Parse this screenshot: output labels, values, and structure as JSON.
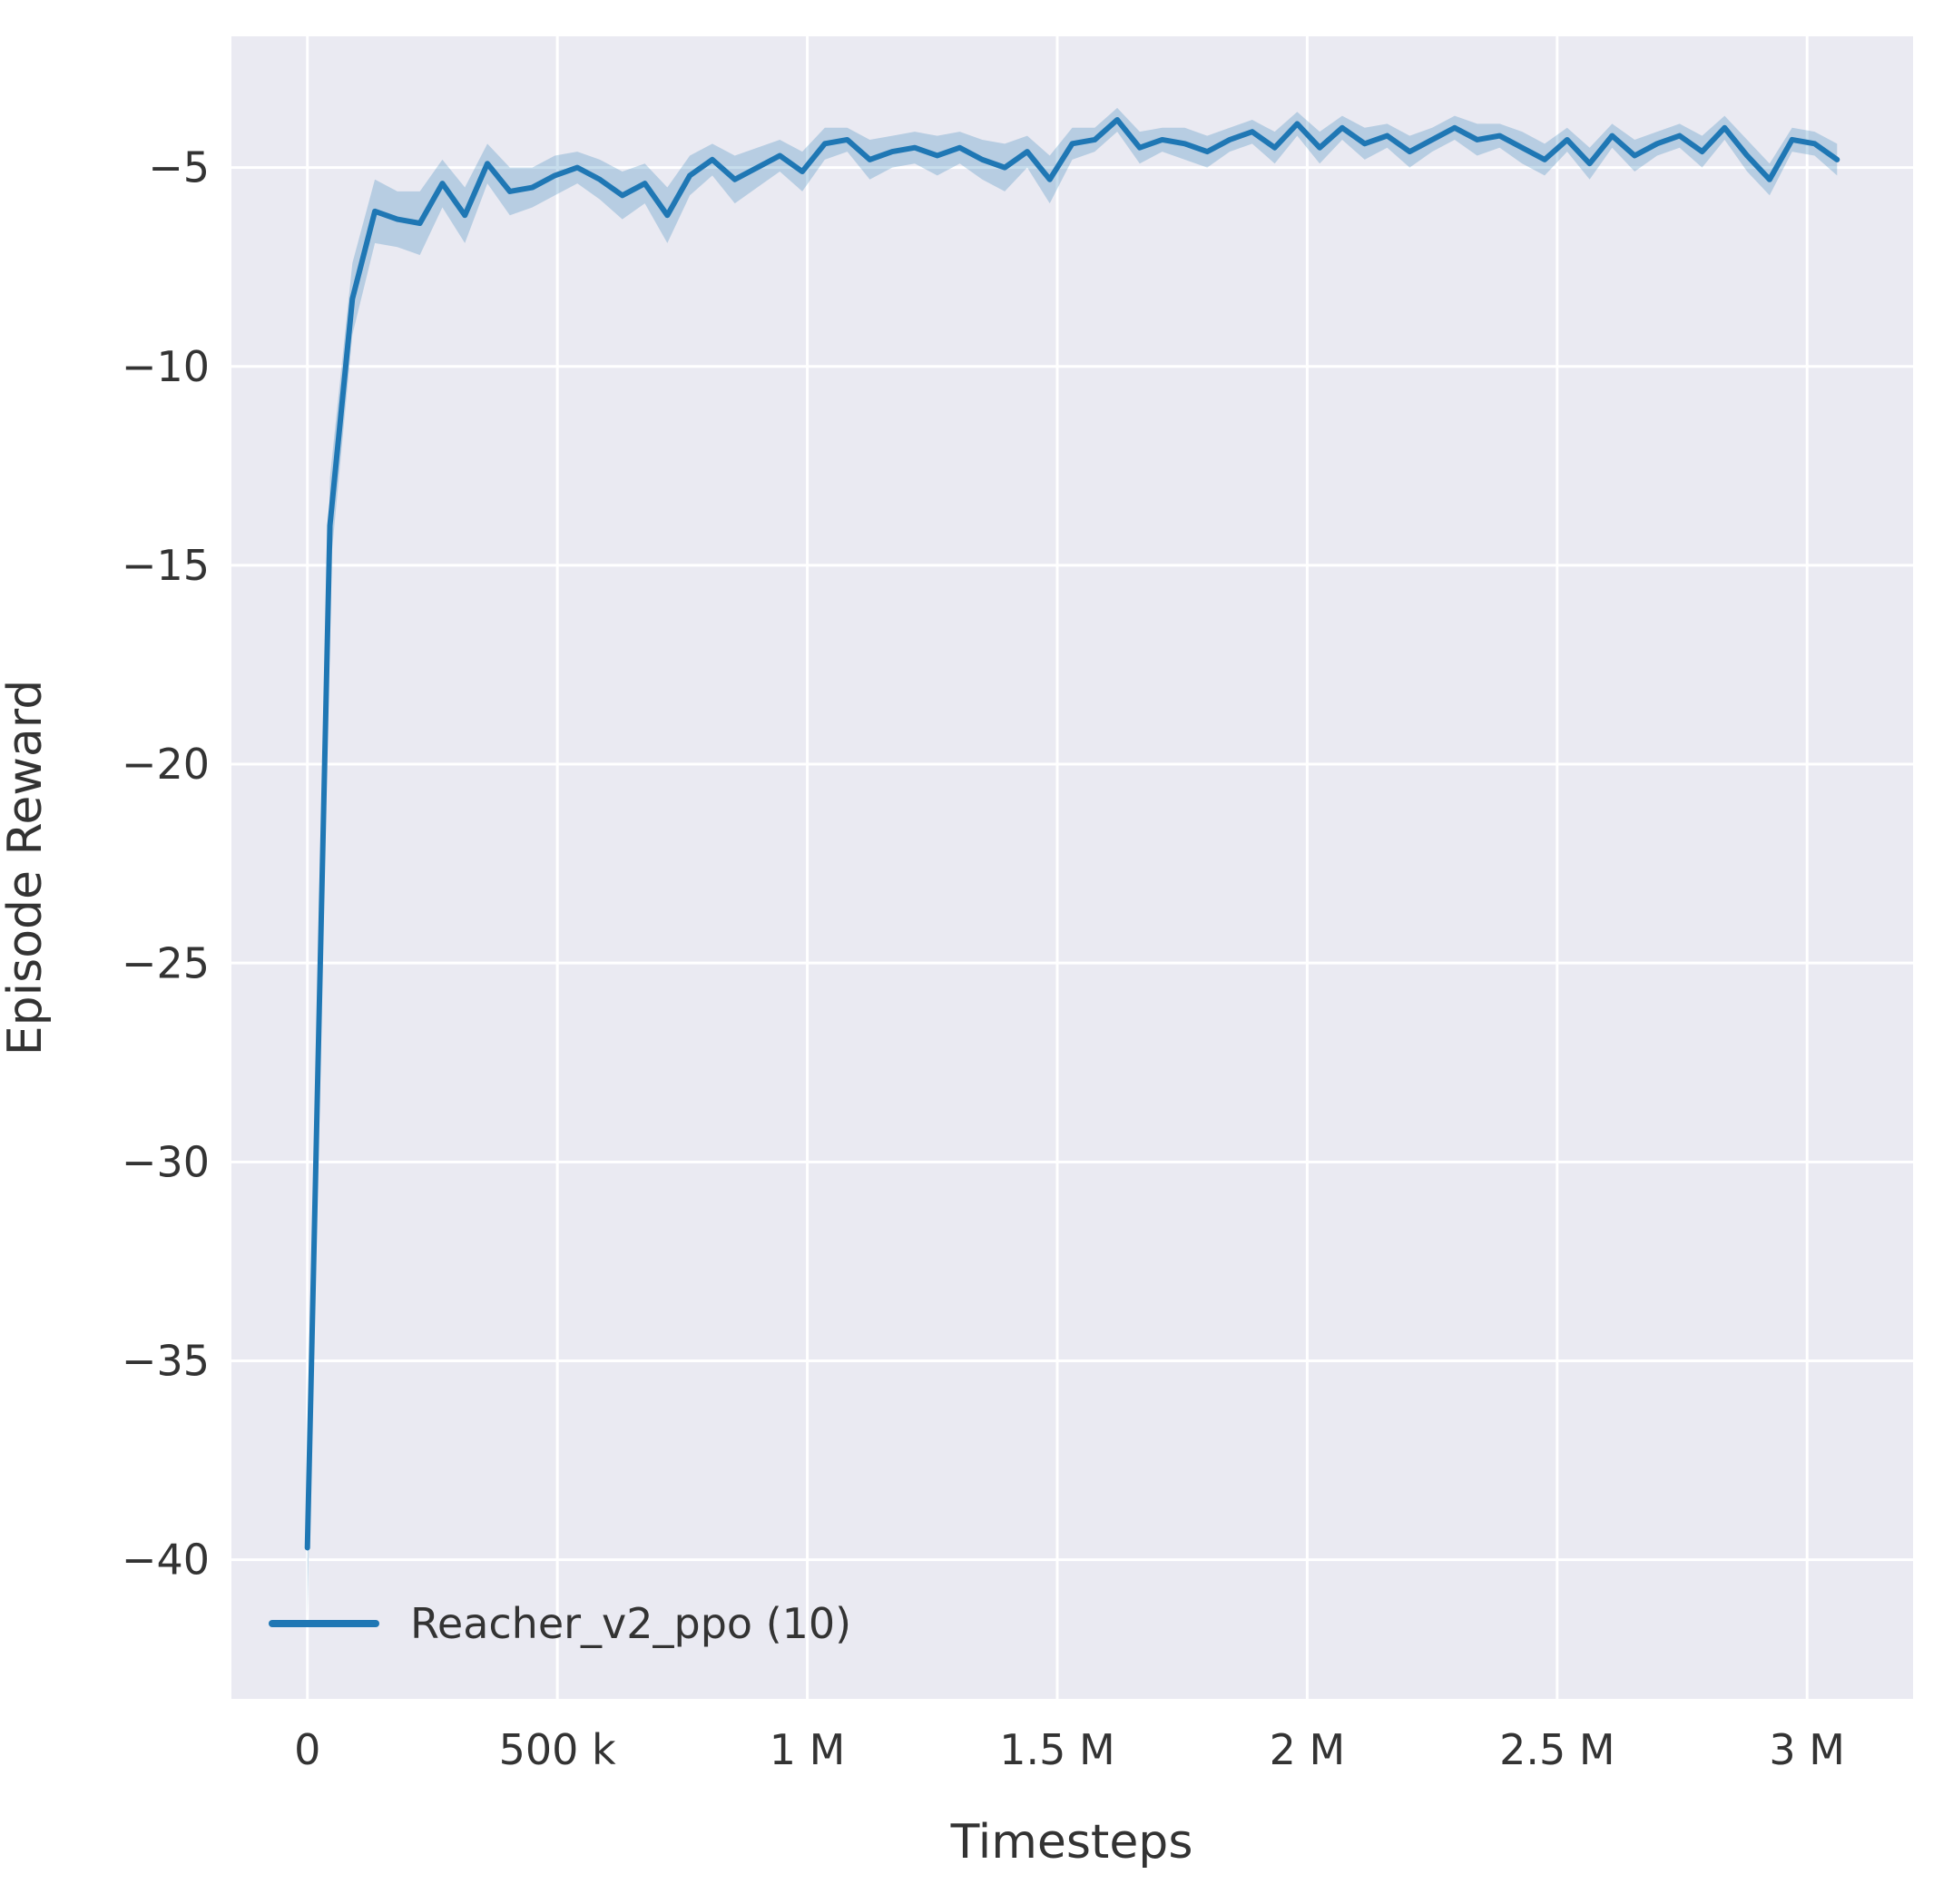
{
  "chart_data": {
    "type": "line",
    "title": "",
    "xlabel": "Timesteps",
    "ylabel": "Episode Reward",
    "x_unit": "thousands of timesteps",
    "xlim": [
      -152,
      3212
    ],
    "ylim": [
      -43.5,
      -1.7
    ],
    "grid": true,
    "x_ticks": {
      "values": [
        0,
        500,
        1000,
        1500,
        2000,
        2500,
        3000
      ],
      "labels": [
        "0",
        "500 k",
        "1 M",
        "1.5 M",
        "2 M",
        "2.5 M",
        "3 M"
      ]
    },
    "y_ticks": {
      "values": [
        -5,
        -10,
        -15,
        -20,
        -25,
        -30,
        -35,
        -40
      ],
      "labels": [
        "−5",
        "−10",
        "−15",
        "−20",
        "−25",
        "−30",
        "−35",
        "−40"
      ]
    },
    "legend": {
      "position": "lower left"
    },
    "colors": {
      "figure_background": "#ffffff",
      "axes_background": "#eaeaf2",
      "grid": "#ffffff",
      "line": "#1f77b4",
      "band": "#1f77b4",
      "band_opacity": 0.25,
      "text": "#333333"
    },
    "series": [
      {
        "name": "Reacher_v2_ppo (10)",
        "color": "#1f77b4",
        "x": [
          0,
          45,
          90,
          135,
          180,
          225,
          270,
          315,
          360,
          405,
          450,
          495,
          540,
          585,
          630,
          675,
          720,
          765,
          810,
          855,
          900,
          945,
          990,
          1035,
          1080,
          1125,
          1170,
          1215,
          1260,
          1305,
          1350,
          1395,
          1440,
          1485,
          1530,
          1575,
          1620,
          1665,
          1710,
          1755,
          1800,
          1845,
          1890,
          1935,
          1980,
          2025,
          2070,
          2115,
          2160,
          2205,
          2250,
          2295,
          2340,
          2385,
          2430,
          2475,
          2520,
          2565,
          2610,
          2655,
          2700,
          2745,
          2790,
          2835,
          2880,
          2925,
          2970,
          3015,
          3060
        ],
        "y": [
          -39.7,
          -14.0,
          -8.3,
          -6.1,
          -6.3,
          -6.4,
          -5.4,
          -6.2,
          -4.9,
          -5.6,
          -5.5,
          -5.2,
          -5.0,
          -5.3,
          -5.7,
          -5.4,
          -6.2,
          -5.2,
          -4.8,
          -5.3,
          -5.0,
          -4.7,
          -5.1,
          -4.4,
          -4.3,
          -4.8,
          -4.6,
          -4.5,
          -4.7,
          -4.5,
          -4.8,
          -5.0,
          -4.6,
          -5.3,
          -4.4,
          -4.3,
          -3.8,
          -4.5,
          -4.3,
          -4.4,
          -4.6,
          -4.3,
          -4.1,
          -4.5,
          -3.9,
          -4.5,
          -4.0,
          -4.4,
          -4.2,
          -4.6,
          -4.3,
          -4.0,
          -4.3,
          -4.2,
          -4.5,
          -4.8,
          -4.3,
          -4.9,
          -4.2,
          -4.7,
          -4.4,
          -4.2,
          -4.6,
          -4.0,
          -4.7,
          -5.3,
          -4.3,
          -4.4,
          -4.8
        ],
        "band_halfwidth": [
          1.8,
          1.2,
          0.9,
          0.8,
          0.7,
          0.8,
          0.6,
          0.7,
          0.5,
          0.6,
          0.5,
          0.5,
          0.4,
          0.5,
          0.6,
          0.5,
          0.7,
          0.5,
          0.4,
          0.6,
          0.5,
          0.4,
          0.5,
          0.4,
          0.3,
          0.5,
          0.4,
          0.4,
          0.5,
          0.4,
          0.5,
          0.6,
          0.4,
          0.6,
          0.4,
          0.3,
          0.3,
          0.4,
          0.3,
          0.4,
          0.4,
          0.3,
          0.3,
          0.4,
          0.3,
          0.4,
          0.3,
          0.4,
          0.3,
          0.4,
          0.3,
          0.3,
          0.4,
          0.3,
          0.4,
          0.4,
          0.3,
          0.4,
          0.3,
          0.4,
          0.3,
          0.3,
          0.4,
          0.3,
          0.4,
          0.4,
          0.3,
          0.3,
          0.4
        ]
      }
    ]
  }
}
